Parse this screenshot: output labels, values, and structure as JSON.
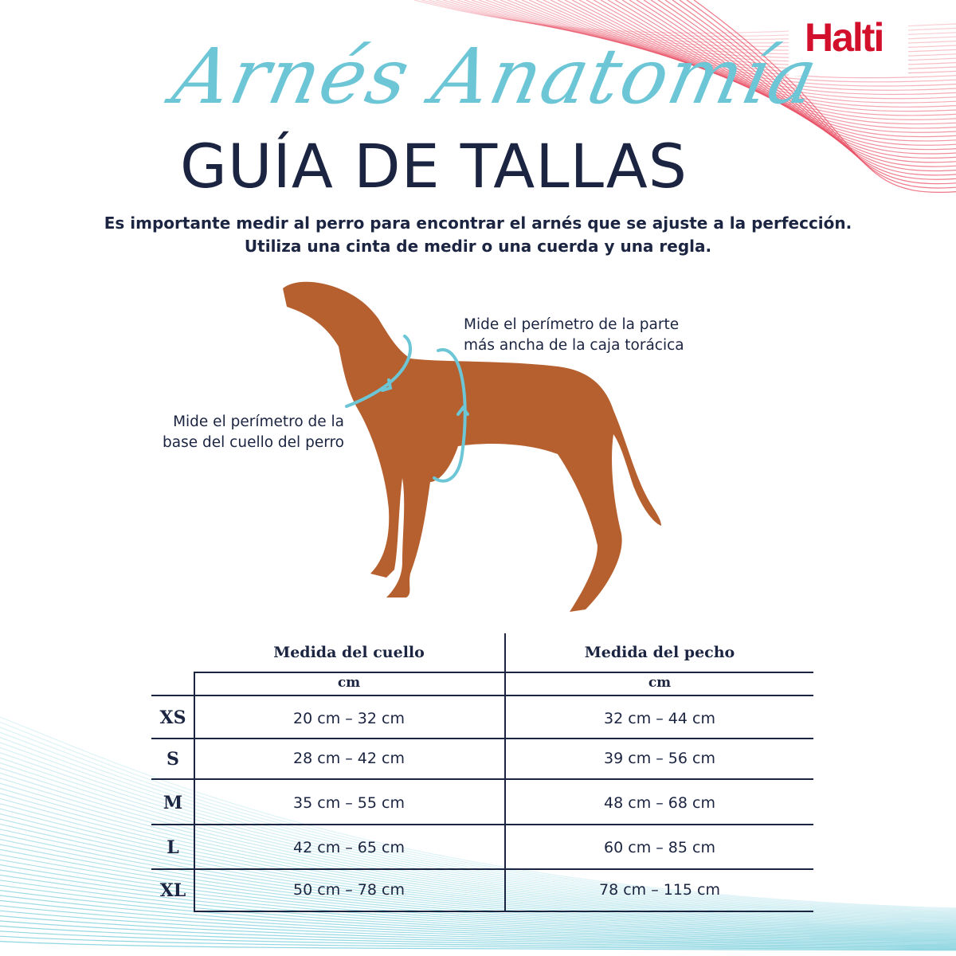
{
  "brand": {
    "logo": "Halti",
    "color": "#d2102c"
  },
  "title": {
    "script": "Arnés Anatomía",
    "heading": "GUÍA DE TALLAS"
  },
  "intro": [
    "Es importante medir al perro para encontrar el arnés que se ajuste a la perfección.",
    "Utiliza una cinta de medir o una cuerda y una regla."
  ],
  "notes": {
    "chest": [
      "Mide el perímetro de la parte",
      "más ancha de la caja torácica"
    ],
    "neck": [
      "Mide el perímetro de la",
      "base del cuello del perro"
    ]
  },
  "colors": {
    "accent": "#6cc6d6",
    "navy": "#1b2440",
    "dog": "#b5602e"
  },
  "table": {
    "headers": [
      "Medida del cuello",
      "Medida del pecho"
    ],
    "units": [
      "cm",
      "cm"
    ],
    "rows": [
      {
        "size": "XS",
        "neck": "20 cm – 32 cm",
        "chest": "32 cm – 44 cm"
      },
      {
        "size": "S",
        "neck": "28 cm – 42 cm",
        "chest": "39 cm – 56 cm"
      },
      {
        "size": "M",
        "neck": "35 cm – 55 cm",
        "chest": "48 cm – 68 cm"
      },
      {
        "size": "L",
        "neck": "42 cm – 65 cm",
        "chest": "60 cm – 85 cm"
      },
      {
        "size": "XL",
        "neck": "50 cm – 78 cm",
        "chest": "78 cm – 115 cm"
      }
    ]
  }
}
